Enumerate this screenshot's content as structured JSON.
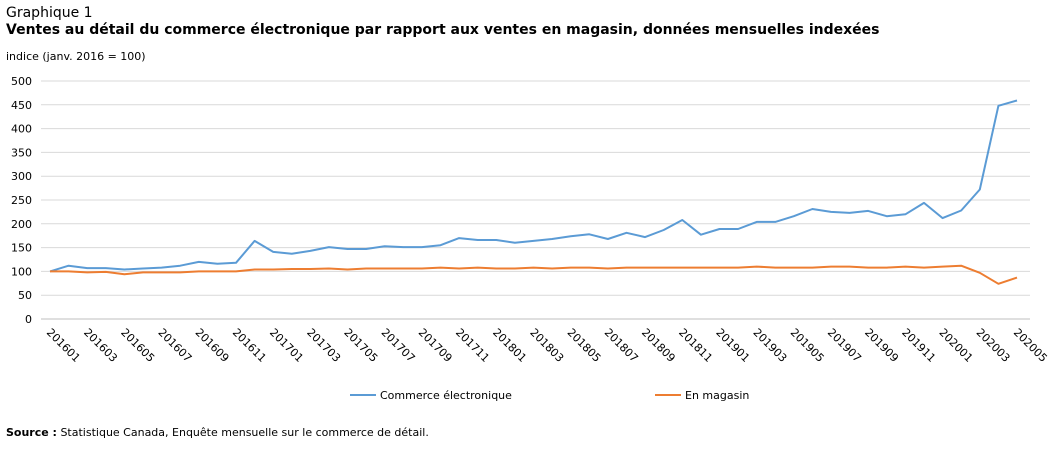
{
  "heading": {
    "number": "Graphique 1",
    "title": "Ventes au détail du commerce électronique par rapport aux ventes en magasin, données mensuelles indexées"
  },
  "unit_label": "indice (janv. 2016 = 100)",
  "source": {
    "label": "Source :",
    "text": "Statistique Canada, Enquête mensuelle sur le commerce de détail."
  },
  "chart_data": {
    "type": "line",
    "ylabel": "indice (janv. 2016 = 100)",
    "ylim": [
      0,
      500
    ],
    "yticks": [
      0,
      50,
      100,
      150,
      200,
      250,
      300,
      350,
      400,
      450,
      500
    ],
    "grid": true,
    "legend_position": "bottom",
    "x": [
      "201601",
      "201602",
      "201603",
      "201604",
      "201605",
      "201606",
      "201607",
      "201608",
      "201609",
      "201610",
      "201611",
      "201612",
      "201701",
      "201702",
      "201703",
      "201704",
      "201705",
      "201706",
      "201707",
      "201708",
      "201709",
      "201710",
      "201711",
      "201712",
      "201801",
      "201802",
      "201803",
      "201804",
      "201805",
      "201806",
      "201807",
      "201808",
      "201809",
      "201810",
      "201811",
      "201812",
      "201901",
      "201902",
      "201903",
      "201904",
      "201905",
      "201906",
      "201907",
      "201908",
      "201909",
      "201910",
      "201911",
      "201912",
      "202001",
      "202002",
      "202003",
      "202004",
      "202005"
    ],
    "xtick_labels": [
      "201601",
      "201603",
      "201605",
      "201607",
      "201609",
      "201611",
      "201701",
      "201703",
      "201705",
      "201707",
      "201709",
      "201711",
      "201801",
      "201803",
      "201805",
      "201807",
      "201809",
      "201811",
      "201901",
      "201903",
      "201905",
      "201907",
      "201909",
      "201911",
      "202001",
      "202003",
      "202005"
    ],
    "series": [
      {
        "name": "Commerce électronique",
        "color": "#5b9bd5",
        "values": [
          100,
          112,
          107,
          107,
          104,
          106,
          108,
          112,
          120,
          116,
          118,
          164,
          141,
          137,
          143,
          151,
          147,
          147,
          153,
          151,
          151,
          155,
          170,
          166,
          166,
          160,
          164,
          168,
          174,
          178,
          168,
          181,
          172,
          187,
          208,
          177,
          189,
          189,
          204,
          204,
          216,
          231,
          225,
          223,
          227,
          216,
          220,
          244,
          212,
          228,
          272,
          448,
          459
        ]
      },
      {
        "name": "En magasin",
        "color": "#ed7d31",
        "values": [
          100,
          100,
          98,
          99,
          94,
          98,
          98,
          98,
          100,
          100,
          100,
          104,
          104,
          105,
          105,
          106,
          104,
          106,
          106,
          106,
          106,
          108,
          106,
          108,
          106,
          106,
          108,
          106,
          108,
          108,
          106,
          108,
          108,
          108,
          108,
          108,
          108,
          108,
          110,
          108,
          108,
          108,
          110,
          110,
          108,
          108,
          110,
          108,
          110,
          112,
          97,
          74,
          87
        ]
      }
    ]
  }
}
